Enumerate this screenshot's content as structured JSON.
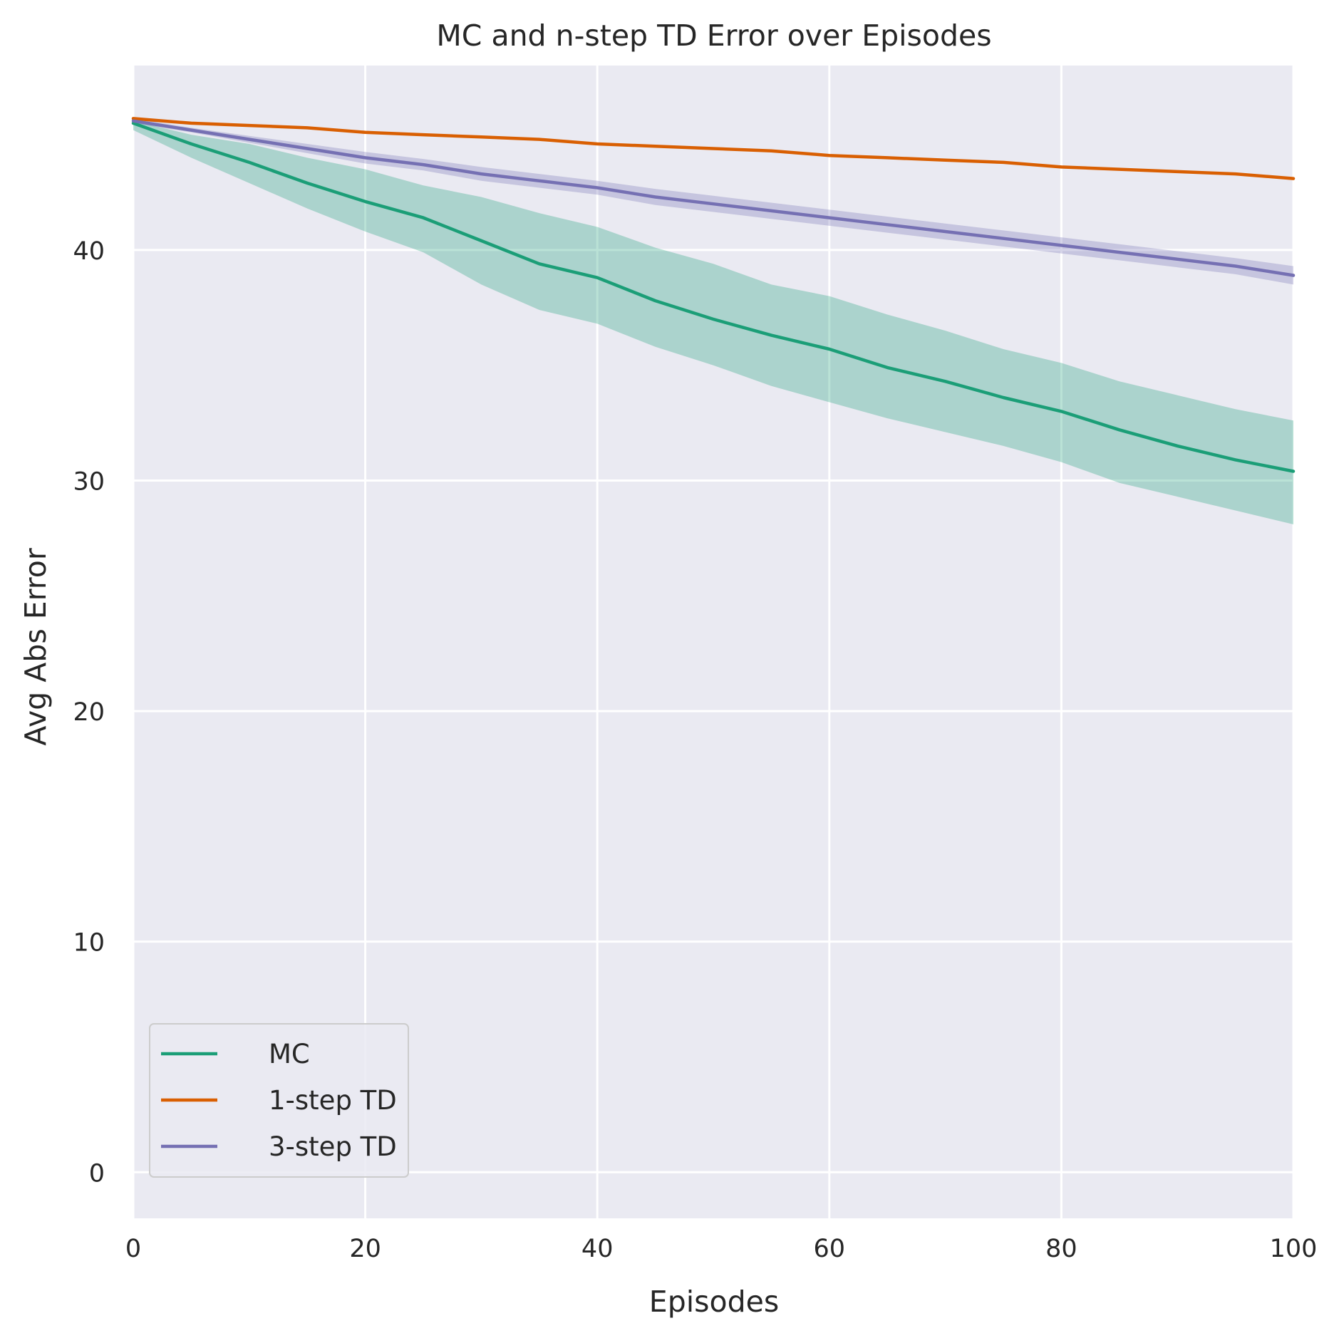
{
  "chart_data": {
    "type": "line",
    "title": "MC and n-step TD Error over Episodes",
    "xlabel": "Episodes",
    "ylabel": "Avg Abs Error",
    "xlim": [
      0,
      100
    ],
    "ylim": [
      -2,
      48
    ],
    "xticks": [
      0,
      20,
      40,
      60,
      80,
      100
    ],
    "yticks": [
      0,
      10,
      20,
      30,
      40
    ],
    "grid": true,
    "legend_position": "lower-left",
    "background": "#eaeaf2",
    "x": [
      0,
      5,
      10,
      15,
      20,
      25,
      30,
      35,
      40,
      45,
      50,
      55,
      60,
      65,
      70,
      75,
      80,
      85,
      90,
      95,
      100
    ],
    "series": [
      {
        "name": "MC",
        "color": "#1b9e77",
        "values": [
          45.5,
          44.6,
          43.8,
          42.9,
          42.1,
          41.4,
          40.4,
          39.4,
          38.8,
          37.8,
          37.0,
          36.3,
          35.7,
          34.9,
          34.3,
          33.6,
          33.0,
          32.2,
          31.5,
          30.9,
          30.4
        ],
        "band_upper": [
          45.6,
          45.0,
          44.6,
          44.0,
          43.5,
          42.8,
          42.3,
          41.6,
          41.0,
          40.1,
          39.4,
          38.5,
          38.0,
          37.2,
          36.5,
          35.7,
          35.1,
          34.3,
          33.7,
          33.1,
          32.6
        ],
        "band_lower": [
          45.2,
          44.0,
          42.9,
          41.8,
          40.8,
          39.9,
          38.5,
          37.4,
          36.8,
          35.8,
          35.0,
          34.1,
          33.4,
          32.7,
          32.1,
          31.5,
          30.8,
          29.9,
          29.3,
          28.7,
          28.1
        ]
      },
      {
        "name": "1-step TD",
        "color": "#d95f02",
        "values": [
          45.7,
          45.5,
          45.4,
          45.3,
          45.1,
          45.0,
          44.9,
          44.8,
          44.6,
          44.5,
          44.4,
          44.3,
          44.1,
          44.0,
          43.9,
          43.8,
          43.6,
          43.5,
          43.4,
          43.3,
          43.1
        ],
        "band_upper": [
          45.75,
          45.55,
          45.45,
          45.35,
          45.15,
          45.05,
          44.95,
          44.85,
          44.65,
          44.55,
          44.45,
          44.35,
          44.15,
          44.05,
          43.95,
          43.85,
          43.65,
          43.55,
          43.45,
          43.35,
          43.15
        ],
        "band_lower": [
          45.65,
          45.45,
          45.35,
          45.25,
          45.05,
          44.95,
          44.85,
          44.75,
          44.55,
          44.45,
          44.35,
          44.25,
          44.05,
          43.95,
          43.85,
          43.75,
          43.55,
          43.45,
          43.35,
          43.25,
          43.05
        ]
      },
      {
        "name": "3-step TD",
        "color": "#7570b3",
        "values": [
          45.6,
          45.2,
          44.8,
          44.4,
          44.0,
          43.7,
          43.3,
          43.0,
          42.7,
          42.3,
          42.0,
          41.7,
          41.4,
          41.1,
          40.8,
          40.5,
          40.2,
          39.9,
          39.6,
          39.3,
          38.9
        ],
        "band_upper": [
          45.7,
          45.3,
          44.95,
          44.6,
          44.25,
          43.95,
          43.6,
          43.3,
          43.0,
          42.65,
          42.35,
          42.05,
          41.75,
          41.45,
          41.15,
          40.85,
          40.55,
          40.25,
          39.95,
          39.65,
          39.3
        ],
        "band_lower": [
          45.5,
          45.1,
          44.65,
          44.2,
          43.75,
          43.45,
          43.0,
          42.7,
          42.4,
          41.95,
          41.65,
          41.35,
          41.05,
          40.75,
          40.45,
          40.15,
          39.85,
          39.55,
          39.25,
          38.95,
          38.5
        ]
      }
    ]
  }
}
